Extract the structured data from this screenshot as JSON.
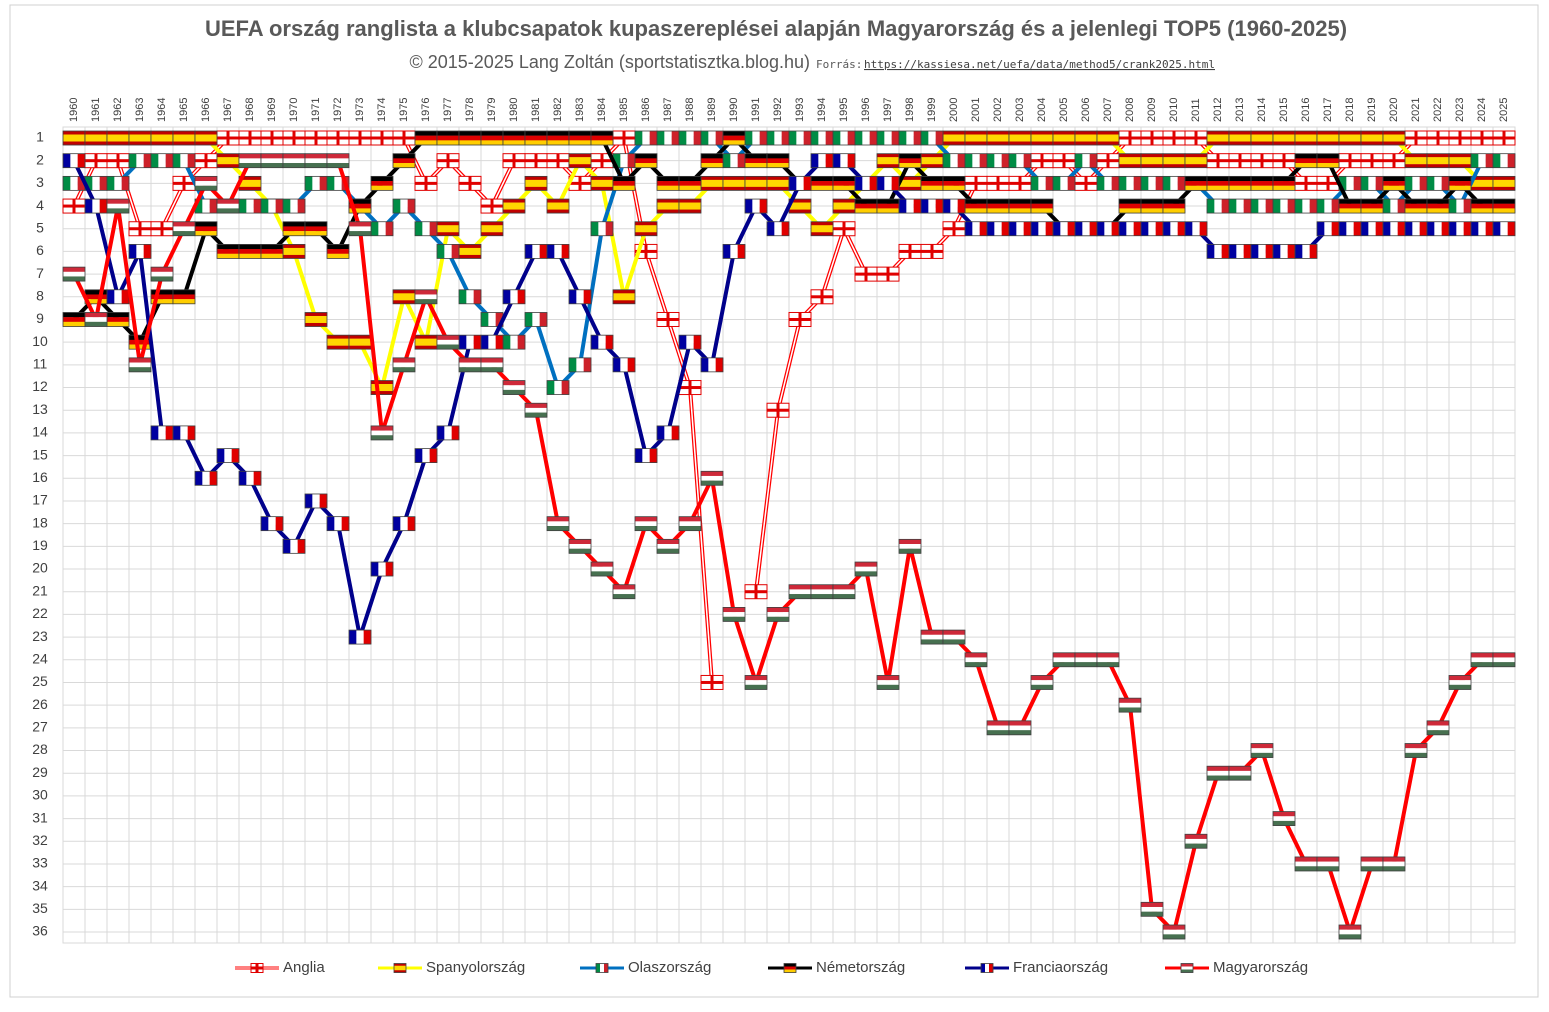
{
  "chart_data": {
    "type": "bump",
    "title": "UEFA ország ranglista a klubcsapatok kupaszereplései alapján Magyarország és a jelenlegi TOP5 (1960-2025)",
    "subtitle": "© 2015-2025 Lang Zoltán (sportstatisztka.blog.hu)",
    "source_label": "Forrás:",
    "source_url": "https://kassiesa.net/uefa/data/method5/crank2025.html",
    "categories": [
      "1960",
      "1961",
      "1962",
      "1963",
      "1964",
      "1965",
      "1966",
      "1967",
      "1968",
      "1969",
      "1970",
      "1971",
      "1972",
      "1973",
      "1974",
      "1975",
      "1976",
      "1977",
      "1978",
      "1979",
      "1980",
      "1981",
      "1982",
      "1983",
      "1984",
      "1985",
      "1986",
      "1987",
      "1988",
      "1989",
      "1990",
      "1991",
      "1992",
      "1993",
      "1994",
      "1995",
      "1996",
      "1997",
      "1998",
      "1999",
      "2000",
      "2001",
      "2002",
      "2003",
      "2004",
      "2005",
      "2006",
      "2007",
      "2008",
      "2009",
      "2010",
      "2011",
      "2012",
      "2013",
      "2014",
      "2015",
      "2016",
      "2017",
      "2018",
      "2019",
      "2020",
      "2021",
      "2022",
      "2023",
      "2024",
      "2025"
    ],
    "ylim": [
      1,
      36
    ],
    "y_inverted": true,
    "yticks": [
      1,
      2,
      3,
      4,
      5,
      6,
      7,
      8,
      9,
      10,
      11,
      12,
      13,
      14,
      15,
      16,
      17,
      18,
      19,
      20,
      21,
      22,
      23,
      24,
      25,
      26,
      27,
      28,
      29,
      30,
      31,
      32,
      33,
      34,
      35,
      36
    ],
    "grid": true,
    "series": [
      {
        "name": "Anglia",
        "color": "#ff0000",
        "values": [
          4,
          2,
          2,
          5,
          5,
          3,
          2,
          1,
          1,
          1,
          1,
          1,
          1,
          1,
          1,
          1,
          3,
          2,
          3,
          4,
          2,
          2,
          2,
          3,
          2,
          1,
          6,
          9,
          12,
          25,
          null,
          21,
          13,
          9,
          8,
          5,
          7,
          7,
          6,
          6,
          5,
          3,
          3,
          3,
          2,
          2,
          3,
          2,
          1,
          1,
          1,
          1,
          2,
          2,
          2,
          2,
          3,
          3,
          2,
          2,
          2,
          1,
          1,
          1,
          1,
          1
        ]
      },
      {
        "name": "Spanyolország",
        "color": "#ffff00",
        "values": [
          1,
          1,
          1,
          1,
          1,
          1,
          1,
          2,
          3,
          4,
          6,
          9,
          10,
          10,
          12,
          8,
          10,
          5,
          6,
          5,
          4,
          3,
          4,
          2,
          3,
          8,
          5,
          4,
          4,
          3,
          3,
          3,
          3,
          4,
          5,
          4,
          3,
          2,
          3,
          2,
          1,
          1,
          1,
          1,
          1,
          1,
          1,
          1,
          2,
          2,
          2,
          2,
          1,
          1,
          1,
          1,
          1,
          1,
          1,
          1,
          1,
          2,
          2,
          2,
          3,
          3
        ]
      },
      {
        "name": "Olaszország",
        "color": "#0070c0",
        "values": [
          3,
          3,
          3,
          2,
          2,
          2,
          4,
          4,
          4,
          4,
          4,
          3,
          3,
          4,
          5,
          4,
          5,
          6,
          8,
          9,
          10,
          9,
          12,
          11,
          5,
          2,
          1,
          1,
          1,
          1,
          2,
          1,
          1,
          1,
          1,
          1,
          1,
          1,
          1,
          1,
          2,
          2,
          2,
          2,
          3,
          3,
          2,
          3,
          3,
          3,
          3,
          3,
          4,
          4,
          4,
          4,
          4,
          4,
          3,
          3,
          4,
          3,
          3,
          4,
          2,
          2
        ]
      },
      {
        "name": "Németország",
        "color": "#000000",
        "values": [
          9,
          8,
          9,
          10,
          8,
          8,
          5,
          6,
          6,
          6,
          5,
          5,
          6,
          4,
          3,
          2,
          1,
          1,
          1,
          1,
          1,
          1,
          1,
          1,
          1,
          3,
          2,
          3,
          3,
          2,
          1,
          2,
          2,
          3,
          3,
          3,
          4,
          4,
          2,
          3,
          3,
          4,
          4,
          4,
          4,
          5,
          5,
          5,
          4,
          4,
          4,
          3,
          3,
          3,
          3,
          3,
          2,
          2,
          4,
          4,
          3,
          4,
          4,
          3,
          4,
          4
        ]
      },
      {
        "name": "Franciaország",
        "color": "#00008b",
        "values": [
          2,
          4,
          8,
          6,
          14,
          14,
          16,
          15,
          16,
          18,
          19,
          17,
          18,
          23,
          20,
          18,
          15,
          14,
          10,
          10,
          8,
          6,
          6,
          8,
          10,
          11,
          15,
          14,
          10,
          11,
          6,
          4,
          5,
          3,
          2,
          2,
          3,
          3,
          4,
          4,
          4,
          5,
          5,
          5,
          5,
          5,
          5,
          5,
          5,
          5,
          5,
          5,
          6,
          6,
          6,
          6,
          6,
          5,
          5,
          5,
          5,
          5,
          5,
          5,
          5,
          5
        ]
      },
      {
        "name": "Magyarország",
        "color": "#ff0000",
        "values": [
          7,
          9,
          4,
          11,
          7,
          5,
          3,
          4,
          2,
          2,
          2,
          2,
          2,
          5,
          14,
          11,
          8,
          10,
          11,
          11,
          12,
          13,
          18,
          19,
          20,
          21,
          18,
          19,
          18,
          16,
          22,
          25,
          22,
          21,
          21,
          21,
          20,
          25,
          19,
          23,
          23,
          24,
          27,
          27,
          25,
          24,
          24,
          24,
          26,
          35,
          36,
          32,
          29,
          29,
          28,
          31,
          33,
          33,
          36,
          33,
          33,
          28,
          27,
          25,
          24,
          24
        ]
      }
    ]
  }
}
